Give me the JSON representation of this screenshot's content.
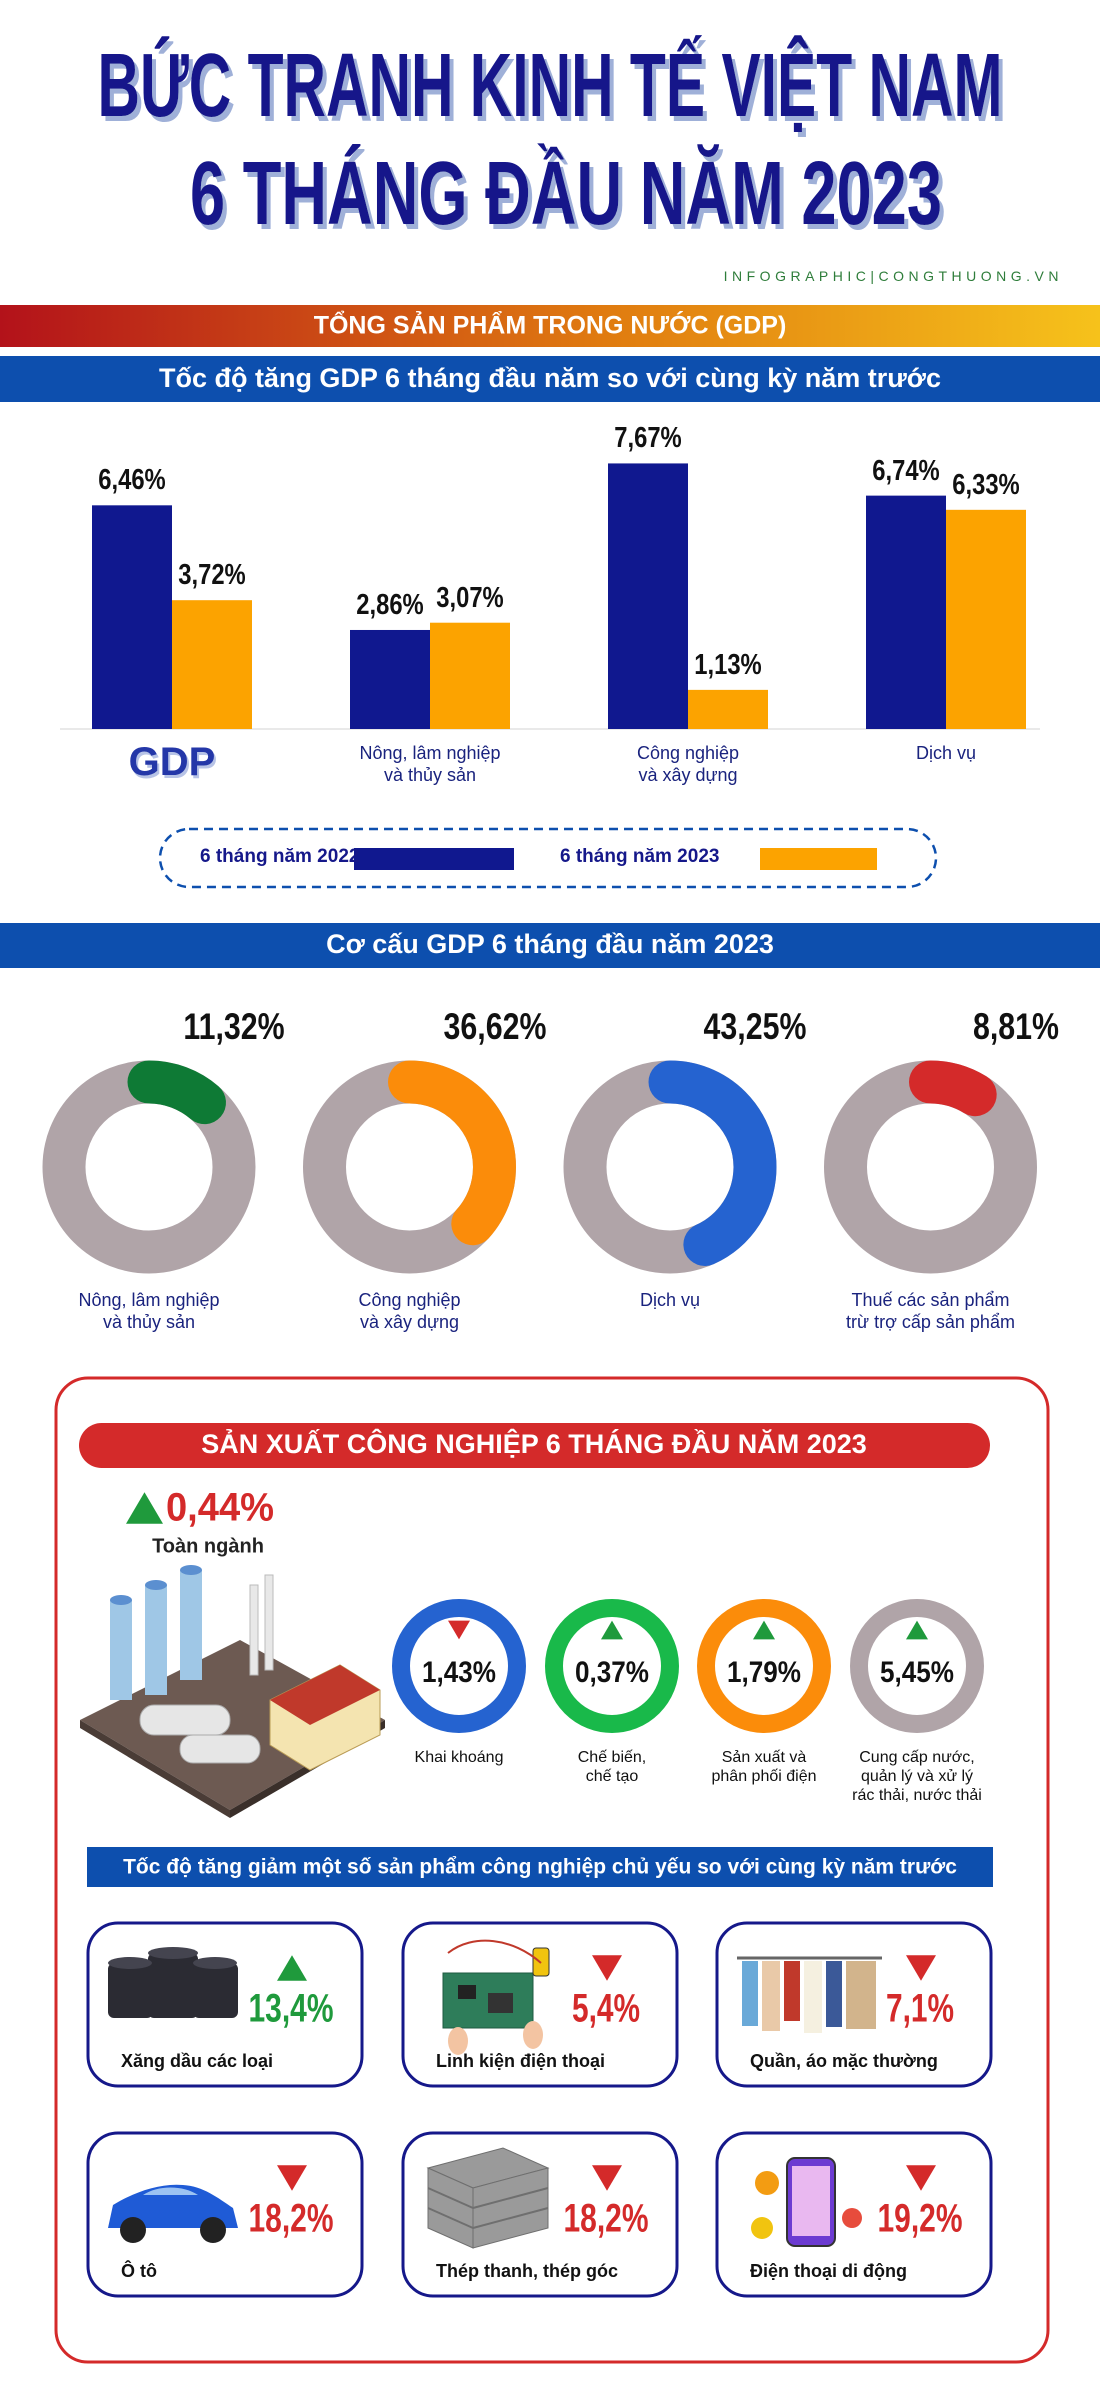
{
  "header": {
    "title_lines": [
      "BỨC TRANH KINH TẾ VIỆT NAM",
      "6 THÁNG ĐẦU NĂM 2023"
    ],
    "source": "INFOGRAPHIC|CONGTHUONG.VN",
    "section": "TỔNG SẢN PHẨM TRONG NƯỚC (GDP)"
  },
  "chart_data": [
    {
      "type": "bar",
      "title": "Tốc độ tăng GDP 6 tháng đầu năm so với cùng kỳ năm trước",
      "categories": [
        "GDP",
        "Nông, lâm nghiệp\nvà thủy sản",
        "Công nghiệp\nvà xây dựng",
        "Dịch vụ"
      ],
      "series": [
        {
          "name": "6 tháng năm 2022",
          "color": "#10188f",
          "values": [
            6.46,
            2.86,
            7.67,
            6.74
          ],
          "value_labels": [
            "6,46%",
            "2,86%",
            "7,67%",
            "6,74%"
          ]
        },
        {
          "name": "6 tháng năm 2023",
          "color": "#fca300",
          "values": [
            3.72,
            3.07,
            1.13,
            6.33
          ],
          "value_labels": [
            "3,72%",
            "3,07%",
            "1,13%",
            "6,33%"
          ]
        }
      ],
      "ylim": [
        0,
        8
      ]
    },
    {
      "type": "donut",
      "title": "Cơ cấu GDP 6 tháng đầu năm 2023",
      "categories": [
        "Nông, lâm nghiệp\nvà thủy sản",
        "Công nghiệp\nvà xây dựng",
        "Dịch vụ",
        "Thuế các sản phẩm\ntrừ trợ cấp sản phẩm"
      ],
      "values": [
        11.32,
        36.62,
        43.25,
        8.81
      ],
      "value_labels": [
        "11,32%",
        "36,62%",
        "43,25%",
        "8,81%"
      ],
      "colors": [
        "#0e7a35",
        "#fb8c0a",
        "#2563d0",
        "#d42a2a"
      ],
      "ring_color": "#b0a4a8"
    }
  ],
  "industry": {
    "title": "SẢN XUẤT CÔNG NGHIỆP 6 THÁNG ĐẦU NĂM 2023",
    "overall": {
      "value": "0,44%",
      "direction": "up",
      "label": "Toàn ngành"
    },
    "sectors": [
      {
        "name": "Khai khoáng",
        "value": "1,43%",
        "direction": "down",
        "color": "#2563d0"
      },
      {
        "name": "Chế biến,\nchế tạo",
        "value": "0,37%",
        "direction": "up",
        "color": "#19b94a"
      },
      {
        "name": "Sản xuất và\nphân phối điện",
        "value": "1,79%",
        "direction": "up",
        "color": "#fb8c0a"
      },
      {
        "name": "Cung cấp nước,\nquản lý và xử lý\nrác thải, nước thải",
        "value": "5,45%",
        "direction": "up",
        "color": "#b0a4a8"
      }
    ],
    "products_title": "Tốc độ tăng giảm một số sản phẩm công nghiệp chủ yếu so với cùng kỳ năm trước",
    "products": [
      {
        "name": "Xăng dầu các loại",
        "value": "13,4%",
        "direction": "up"
      },
      {
        "name": "Linh kiện điện thoại",
        "value": "5,4%",
        "direction": "down"
      },
      {
        "name": "Quần, áo mặc thường",
        "value": "7,1%",
        "direction": "down"
      },
      {
        "name": "Ô tô",
        "value": "18,2%",
        "direction": "down"
      },
      {
        "name": "Thép thanh, thép góc",
        "value": "18,2%",
        "direction": "down"
      },
      {
        "name": "Điện thoại di động",
        "value": "19,2%",
        "direction": "down"
      }
    ]
  }
}
